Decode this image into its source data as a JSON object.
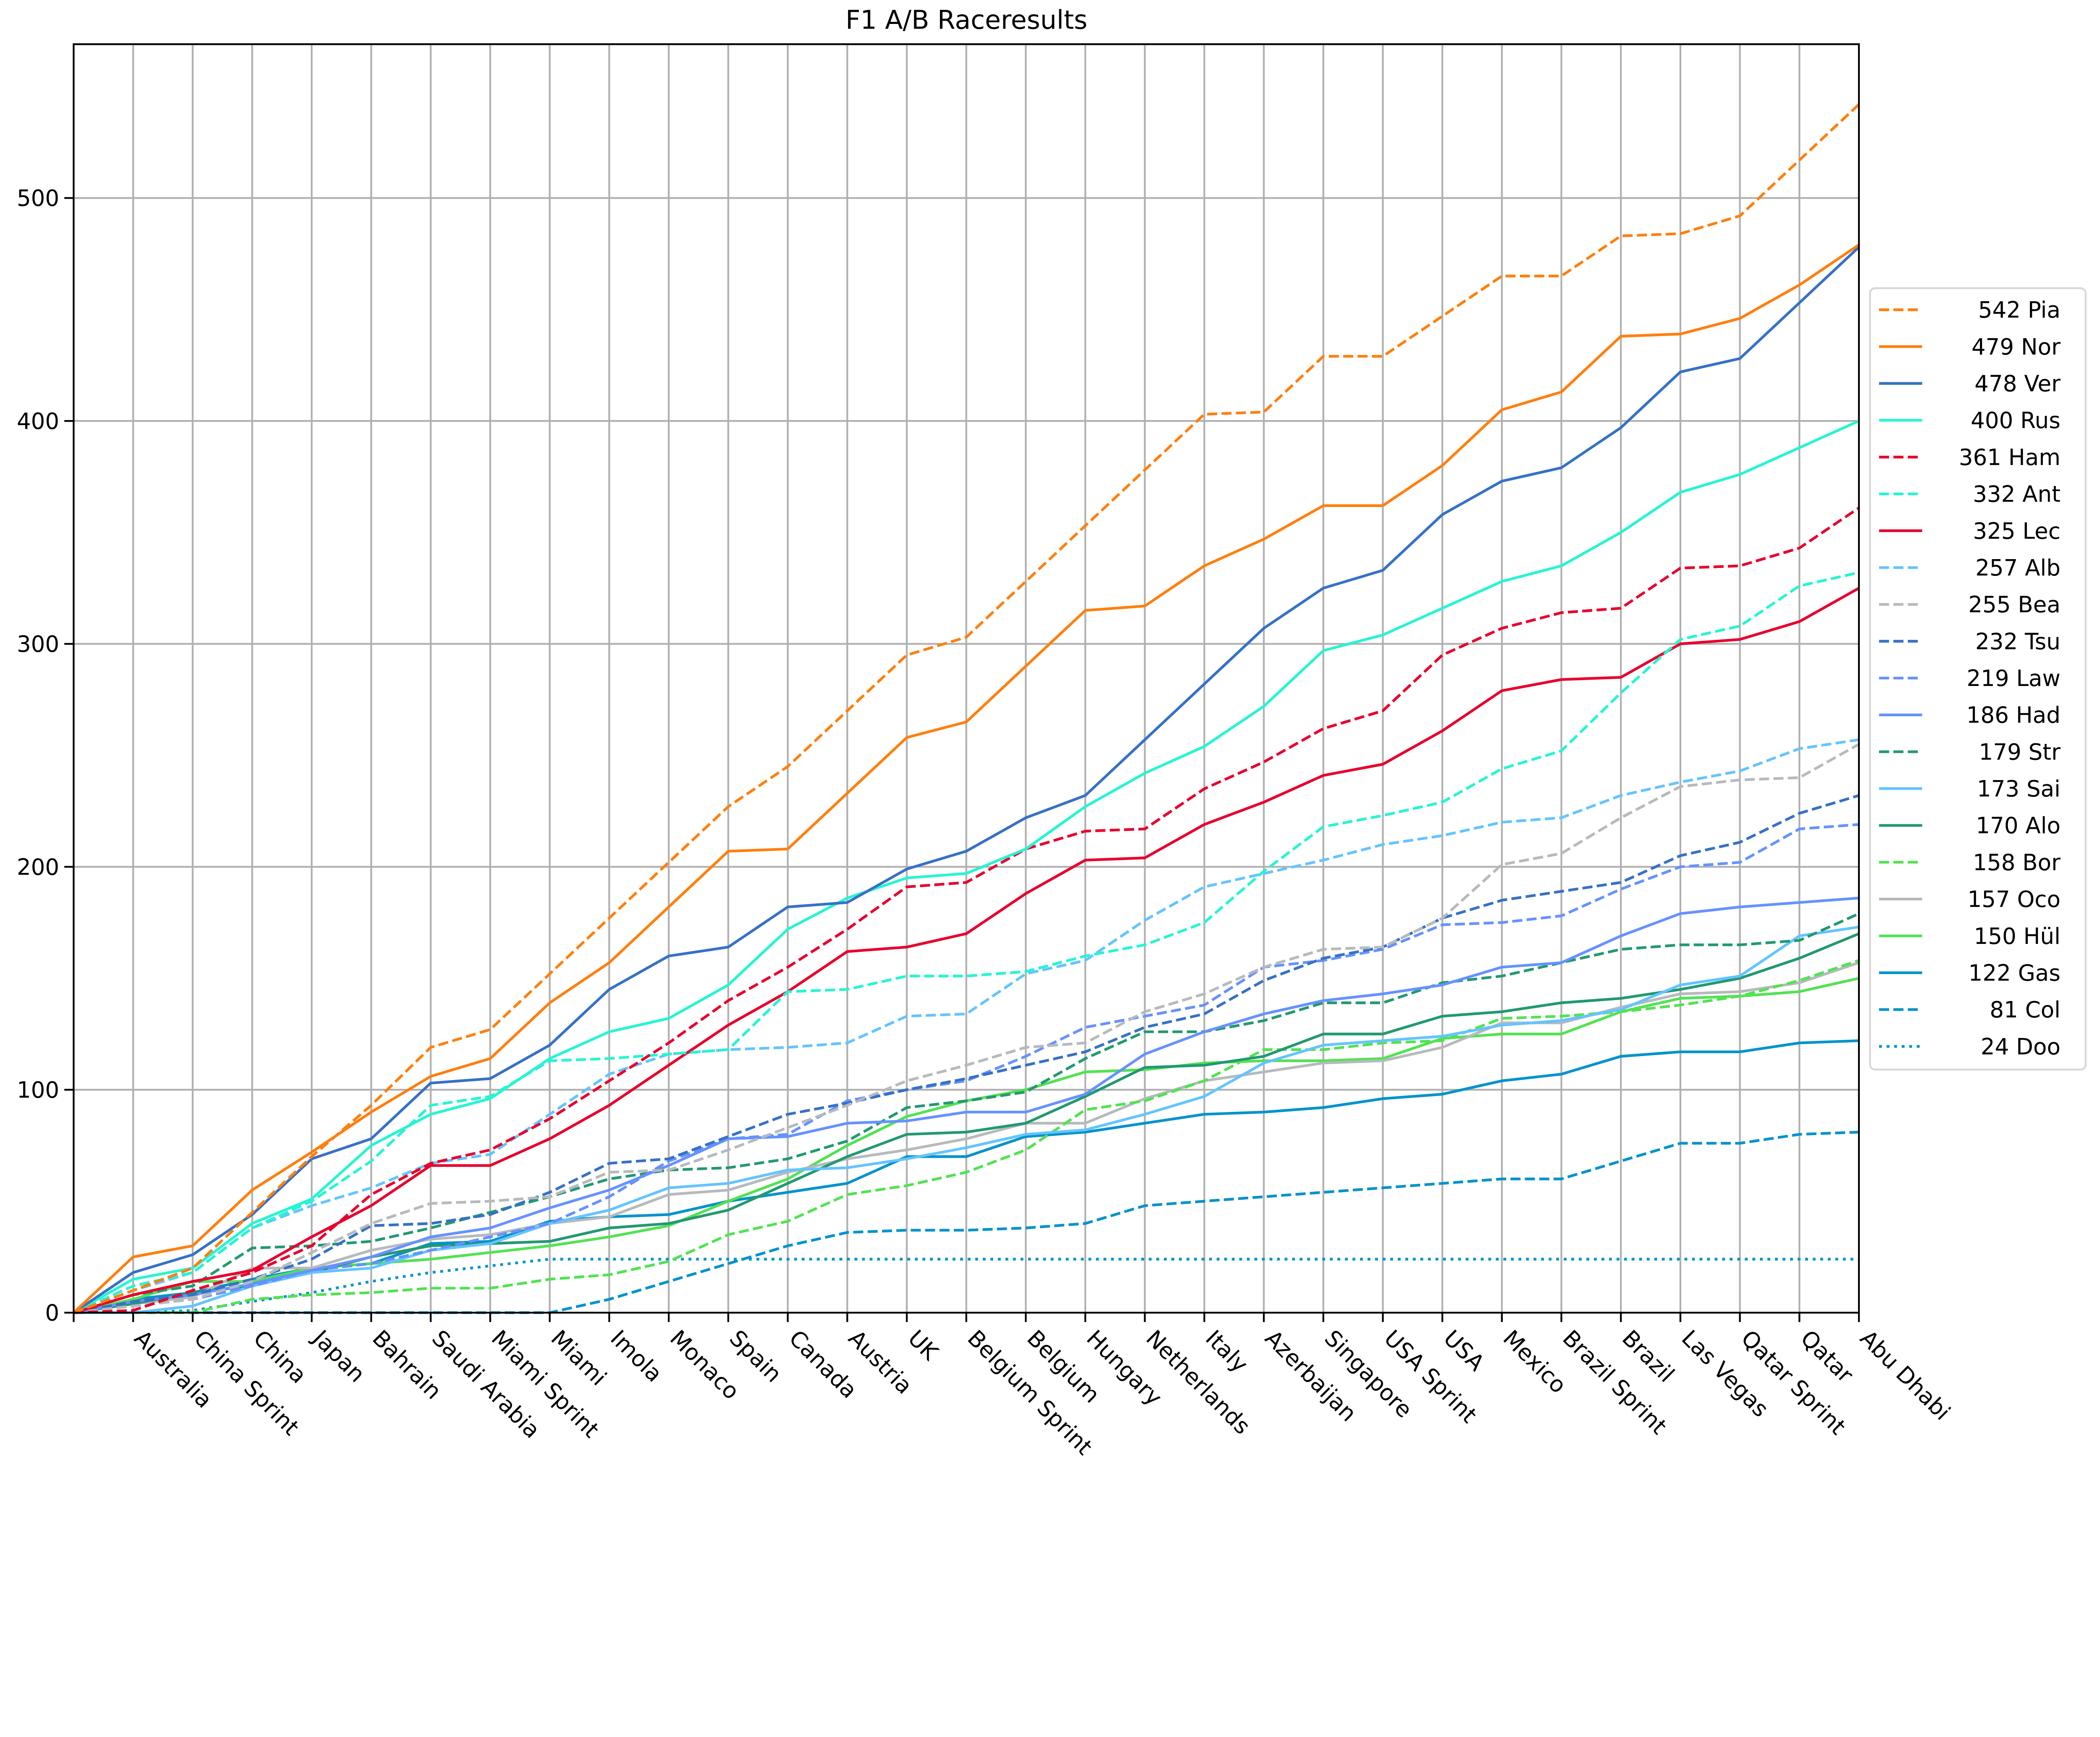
{
  "chart_data": {
    "type": "line",
    "title": "F1 A/B Raceresults",
    "xlabel": "",
    "ylabel": "",
    "ylim": [
      0,
      569
    ],
    "yticks": [
      0,
      100,
      200,
      300,
      400,
      500
    ],
    "grid": true,
    "legend_position": "right",
    "categories": [
      "",
      "Australia",
      "China Sprint",
      "China",
      "Japan",
      "Bahrain",
      "Saudi Arabia",
      "Miami Sprint",
      "Miami",
      "Imola",
      "Monaco",
      "Spain",
      "Canada",
      "Austria",
      "UK",
      "Belgium Sprint",
      "Belgium",
      "Hungary",
      "Netherlands",
      "Italy",
      "Azerbaijan",
      "Singapore",
      "USA Sprint",
      "USA",
      "Mexico",
      "Brazil Sprint",
      "Brazil",
      "Las Vegas",
      "Qatar Sprint",
      "Qatar",
      "Abu Dhabi"
    ],
    "series": [
      {
        "name": "Pia",
        "legend": "542 Pia",
        "color": "#ff7f0e",
        "style": "dashed",
        "values": [
          0,
          10,
          20,
          45,
          70,
          93,
          119,
          127,
          152,
          177,
          202,
          227,
          245,
          270,
          295,
          303,
          328,
          353,
          378,
          403,
          404,
          429,
          429,
          447,
          465,
          465,
          483,
          484,
          492,
          517,
          542
        ]
      },
      {
        "name": "Nor",
        "legend": "479 Nor",
        "color": "#ff7f0e",
        "style": "solid",
        "values": [
          0,
          25,
          30,
          55,
          72,
          90,
          106,
          114,
          139,
          157,
          182,
          207,
          208,
          233,
          258,
          265,
          290,
          315,
          317,
          335,
          347,
          362,
          362,
          380,
          405,
          413,
          438,
          439,
          446,
          461,
          479
        ]
      },
      {
        "name": "Ver",
        "legend": "478 Ver",
        "color": "#3671c6",
        "style": "solid",
        "values": [
          0,
          18,
          26,
          44,
          69,
          78,
          103,
          105,
          120,
          145,
          160,
          164,
          182,
          184,
          199,
          207,
          222,
          232,
          257,
          282,
          307,
          325,
          333,
          358,
          373,
          379,
          397,
          422,
          428,
          453,
          478
        ]
      },
      {
        "name": "Rus",
        "legend": "400 Rus",
        "color": "#27f4d2",
        "style": "solid",
        "values": [
          0,
          15,
          20,
          40,
          51,
          75,
          89,
          96,
          114,
          126,
          132,
          147,
          172,
          186,
          195,
          197,
          208,
          227,
          242,
          254,
          272,
          297,
          304,
          316,
          328,
          335,
          350,
          368,
          376,
          388,
          400
        ]
      },
      {
        "name": "Ham",
        "legend": "361 Ham",
        "color": "#e8002d",
        "style": "dashed",
        "values": [
          0,
          1,
          10,
          18,
          30,
          53,
          67,
          73,
          87,
          104,
          121,
          140,
          155,
          172,
          191,
          193,
          208,
          216,
          217,
          235,
          247,
          262,
          270,
          295,
          307,
          314,
          316,
          334,
          335,
          343,
          361
        ]
      },
      {
        "name": "Ant",
        "legend": "332 Ant",
        "color": "#27f4d2",
        "style": "dashed",
        "values": [
          0,
          12,
          18,
          38,
          50,
          68,
          93,
          97,
          113,
          114,
          116,
          118,
          144,
          145,
          151,
          151,
          153,
          160,
          165,
          175,
          198,
          218,
          223,
          229,
          244,
          252,
          278,
          302,
          308,
          326,
          332
        ]
      },
      {
        "name": "Lec",
        "legend": "325 Lec",
        "color": "#e8002d",
        "style": "solid",
        "values": [
          0,
          8,
          14,
          19,
          34,
          48,
          66,
          66,
          78,
          93,
          111,
          129,
          144,
          162,
          164,
          170,
          188,
          203,
          204,
          219,
          229,
          241,
          246,
          261,
          279,
          284,
          285,
          300,
          302,
          310,
          325
        ]
      },
      {
        "name": "Alb",
        "legend": "257 Alb",
        "color": "#64c4ff",
        "style": "dashed",
        "values": [
          0,
          10,
          18,
          38,
          48,
          56,
          67,
          71,
          89,
          107,
          116,
          118,
          119,
          121,
          133,
          134,
          152,
          158,
          176,
          191,
          197,
          203,
          210,
          214,
          220,
          222,
          232,
          238,
          243,
          253,
          257
        ]
      },
      {
        "name": "Bea",
        "legend": "255 Bea",
        "color": "#b6babd",
        "style": "dashed",
        "values": [
          0,
          3,
          6,
          14,
          27,
          40,
          49,
          50,
          52,
          63,
          64,
          73,
          83,
          93,
          104,
          111,
          119,
          121,
          135,
          143,
          155,
          163,
          164,
          177,
          201,
          206,
          222,
          236,
          239,
          240,
          255
        ]
      },
      {
        "name": "Tsu",
        "legend": "232 Tsu",
        "color": "#3671c6",
        "style": "dashed",
        "values": [
          0,
          5,
          8,
          15,
          24,
          39,
          40,
          44,
          54,
          67,
          69,
          79,
          89,
          94,
          100,
          105,
          111,
          117,
          128,
          134,
          149,
          159,
          164,
          177,
          185,
          189,
          193,
          205,
          211,
          224,
          232
        ]
      },
      {
        "name": "Law",
        "legend": "219 Law",
        "color": "#6692ff",
        "style": "dashed",
        "values": [
          0,
          3,
          6,
          12,
          19,
          22,
          28,
          34,
          40,
          52,
          68,
          78,
          80,
          95,
          100,
          104,
          115,
          128,
          133,
          138,
          155,
          158,
          163,
          174,
          175,
          178,
          190,
          200,
          202,
          217,
          219
        ]
      },
      {
        "name": "Had",
        "legend": "186 Had",
        "color": "#6692ff",
        "style": "solid",
        "values": [
          0,
          5,
          8,
          13,
          19,
          25,
          34,
          38,
          47,
          55,
          66,
          78,
          79,
          85,
          86,
          90,
          90,
          98,
          116,
          126,
          134,
          140,
          143,
          147,
          155,
          157,
          169,
          179,
          182,
          184,
          186
        ]
      },
      {
        "name": "Str",
        "legend": "179 Str",
        "color": "#229971",
        "style": "dashed",
        "values": [
          0,
          8,
          12,
          29,
          30,
          32,
          38,
          45,
          52,
          60,
          64,
          65,
          69,
          77,
          92,
          95,
          99,
          114,
          126,
          126,
          131,
          139,
          139,
          148,
          151,
          157,
          163,
          165,
          165,
          167,
          179
        ]
      },
      {
        "name": "Sai",
        "legend": "173 Sai",
        "color": "#64c4ff",
        "style": "solid",
        "values": [
          0,
          0,
          3,
          12,
          18,
          20,
          28,
          31,
          40,
          46,
          56,
          58,
          64,
          65,
          69,
          74,
          80,
          82,
          89,
          97,
          112,
          120,
          122,
          124,
          129,
          131,
          136,
          147,
          151,
          169,
          173
        ]
      },
      {
        "name": "Alo",
        "legend": "170 Alo",
        "color": "#229971",
        "style": "solid",
        "values": [
          0,
          4,
          9,
          12,
          18,
          25,
          30,
          31,
          32,
          38,
          40,
          46,
          58,
          70,
          80,
          81,
          85,
          97,
          110,
          111,
          115,
          125,
          125,
          133,
          135,
          139,
          141,
          145,
          150,
          159,
          170
        ]
      },
      {
        "name": "Bor",
        "legend": "158 Bor",
        "color": "#52e252",
        "style": "dashed",
        "values": [
          0,
          0,
          0,
          6,
          8,
          9,
          11,
          11,
          15,
          17,
          23,
          35,
          41,
          53,
          57,
          63,
          73,
          91,
          95,
          104,
          118,
          118,
          121,
          122,
          132,
          133,
          135,
          138,
          142,
          149,
          158
        ]
      },
      {
        "name": "Oco",
        "legend": "157 Oco",
        "color": "#b6babd",
        "style": "solid",
        "values": [
          0,
          4,
          7,
          20,
          20,
          28,
          33,
          35,
          40,
          43,
          53,
          55,
          63,
          69,
          73,
          78,
          85,
          85,
          96,
          104,
          108,
          112,
          113,
          119,
          130,
          130,
          137,
          143,
          144,
          148,
          157
        ]
      },
      {
        "name": "Hül",
        "legend": "150 Hül",
        "color": "#52e252",
        "style": "solid",
        "values": [
          0,
          6,
          14,
          14,
          20,
          22,
          24,
          27,
          30,
          34,
          39,
          50,
          60,
          75,
          88,
          95,
          100,
          108,
          109,
          112,
          113,
          113,
          114,
          123,
          125,
          125,
          135,
          141,
          142,
          144,
          150
        ]
      },
      {
        "name": "Gas",
        "legend": "122 Gas",
        "color": "#0093cc",
        "style": "solid",
        "values": [
          0,
          6,
          9,
          15,
          20,
          22,
          31,
          32,
          41,
          43,
          44,
          50,
          54,
          58,
          70,
          70,
          79,
          81,
          85,
          89,
          90,
          92,
          96,
          98,
          104,
          107,
          115,
          117,
          117,
          121,
          122
        ]
      },
      {
        "name": "Col",
        "legend": "81 Col",
        "color": "#0093cc",
        "style": "dashed",
        "values": [
          0,
          0,
          0,
          0,
          0,
          0,
          0,
          0,
          0,
          6,
          14,
          22,
          30,
          36,
          37,
          37,
          38,
          40,
          48,
          50,
          52,
          54,
          56,
          58,
          60,
          60,
          68,
          76,
          76,
          80,
          81
        ]
      },
      {
        "name": "Doo",
        "legend": "24 Doo",
        "color": "#0093cc",
        "style": "dotted",
        "values": [
          0,
          0,
          1,
          5,
          9,
          14,
          18,
          21,
          24,
          24,
          24,
          24,
          24,
          24,
          24,
          24,
          24,
          24,
          24,
          24,
          24,
          24,
          24,
          24,
          24,
          24,
          24,
          24,
          24,
          24,
          24
        ]
      }
    ]
  }
}
